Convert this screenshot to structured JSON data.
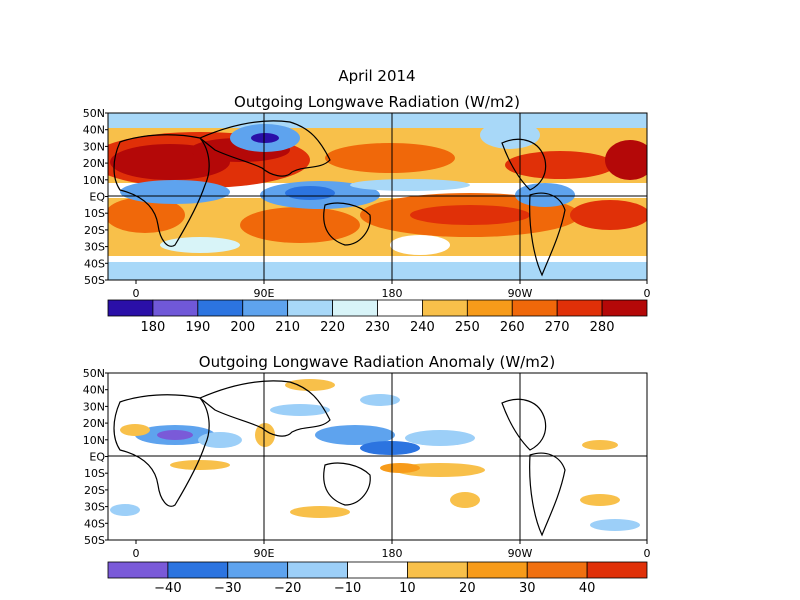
{
  "figure": {
    "month_title": "April 2014",
    "panels": [
      {
        "id": "olr",
        "title": "Outgoing Longwave Radiation (W/m2)",
        "lat_labels": [
          "50N",
          "40N",
          "30N",
          "20N",
          "10N",
          "EQ",
          "10S",
          "20S",
          "30S",
          "40S",
          "50S"
        ],
        "lon_labels": [
          "0",
          "90E",
          "180",
          "90W",
          "0"
        ],
        "colorbar": {
          "colors": [
            "#2a0fa8",
            "#7058d8",
            "#2c74e0",
            "#5ea3ee",
            "#a8d8f8",
            "#d8f4f8",
            "#ffffff",
            "#f8c04a",
            "#f79b1a",
            "#f0680a",
            "#e03008",
            "#b40808"
          ],
          "labels": [
            "180",
            "190",
            "200",
            "210",
            "220",
            "230",
            "240",
            "250",
            "260",
            "270",
            "280"
          ]
        }
      },
      {
        "id": "anomaly",
        "title": "Outgoing Longwave Radiation Anomaly (W/m2)",
        "lat_labels": [
          "50N",
          "40N",
          "30N",
          "20N",
          "10N",
          "EQ",
          "10S",
          "20S",
          "30S",
          "40S",
          "50S"
        ],
        "lon_labels": [
          "0",
          "90E",
          "180",
          "90W",
          "0"
        ],
        "colorbar": {
          "colors": [
            "#7a5ad8",
            "#2c74e0",
            "#5ea3ee",
            "#9ccff8",
            "#ffffff",
            "#f8c04a",
            "#f79b1a",
            "#f07010",
            "#e03008"
          ],
          "labels": [
            "−40",
            "−30",
            "−20",
            "−10",
            "10",
            "20",
            "30",
            "40"
          ]
        }
      }
    ]
  }
}
